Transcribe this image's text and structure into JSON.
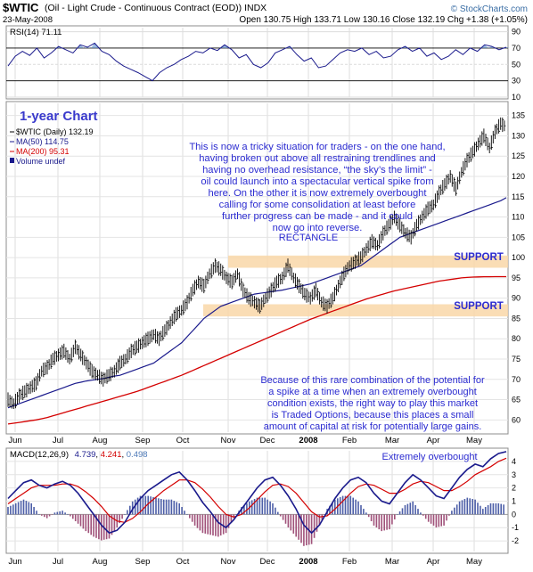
{
  "header": {
    "symbol": "$WTIC",
    "description": "(Oil - Light Crude - Continuous Contract (EOD)) INDX",
    "date": "23-May-2008",
    "quote": "Open 130.75  High 133.71  Low 130.16  Close 132.19  Chg +1.38 (+1.05%)",
    "watermark": "© StockCharts.com"
  },
  "rsi_panel": {
    "legend": "RSI(14) 71.11",
    "y_ticks": [
      "90",
      "70",
      "50",
      "30",
      "10"
    ],
    "levels": [
      30,
      70
    ]
  },
  "price_panel": {
    "chart_title": "1-year Chart",
    "legend": {
      "price": "$WTIC (Daily) 132.19",
      "ma50": "MA(50) 114.75",
      "ma200": "MA(200) 95.31",
      "volume": "Volume undef"
    },
    "y_ticks": [
      "135",
      "130",
      "125",
      "120",
      "115",
      "110",
      "105",
      "100",
      "95",
      "90",
      "85",
      "80",
      "75",
      "70",
      "65",
      "60"
    ],
    "annotations": {
      "top_text": [
        "This is now a tricky situation for traders - on the one hand,",
        "having broken out above all restraining trendlines and",
        "having no overhead resistance, “the sky’s the limit” -",
        "oil could launch into a spectacular vertical spike from",
        "here. On the other it is now extremely overbought",
        "calling for some consolidation at least before",
        "further progress can be made - and it could",
        "now go into reverse."
      ],
      "rectangle": "RECTANGLE",
      "support_upper": "SUPPORT",
      "support_lower": "SUPPORT",
      "bottom_text": [
        "Because of this rare combination of the potential for",
        "a spike at a time when an extremely overbought",
        "condition exists, the right way to play this market",
        "is Traded Options, because this places a small",
        "amount of capital at risk for potentially large gains."
      ]
    }
  },
  "macd_panel": {
    "legend_prefix": "MACD(12,26,9)",
    "macd": "4.739",
    "signal": "4.241",
    "histogram": "0.498",
    "note": "Extremely overbought",
    "y_ticks": [
      "4",
      "3",
      "2",
      "1",
      "0",
      "-1",
      "-2"
    ]
  },
  "x_axis_labels": [
    "Jun",
    "Jul",
    "Aug",
    "Sep",
    "Oct",
    "Nov",
    "Dec",
    "2008",
    "Feb",
    "Mar",
    "Apr",
    "May"
  ],
  "colors": {
    "price": "#000000",
    "ma50": "#1a1a8c",
    "ma200": "#d40000",
    "macd": "#1a1a8c",
    "signal": "#d40000",
    "histogram": "#5a5a9a",
    "annotation": "#2b2bd0",
    "support_band": "#f9d7a8",
    "title": "#3a3acc"
  },
  "chart_data": [
    {
      "type": "line",
      "title": "RSI(14)",
      "x_labels": [
        "Jun",
        "Jul",
        "Aug",
        "Sep",
        "Oct",
        "Nov",
        "Dec",
        "2008",
        "Feb",
        "Mar",
        "Apr",
        "May"
      ],
      "ylim": [
        10,
        95
      ],
      "guide_lines": [
        30,
        70
      ],
      "series": [
        {
          "name": "RSI(14)",
          "values": [
            48,
            60,
            66,
            61,
            70,
            58,
            64,
            72,
            68,
            64,
            74,
            71,
            76,
            66,
            62,
            54,
            48,
            44,
            40,
            35,
            30,
            40,
            46,
            50,
            56,
            60,
            66,
            64,
            70,
            67,
            74,
            68,
            58,
            62,
            50,
            46,
            52,
            64,
            68,
            72,
            62,
            54,
            58,
            46,
            48,
            56,
            64,
            68,
            66,
            70,
            62,
            66,
            58,
            60,
            68,
            72,
            66,
            70,
            60,
            64,
            56,
            60,
            68,
            62,
            70,
            66,
            74,
            72,
            68,
            71
          ]
        }
      ]
    },
    {
      "type": "line",
      "title": "$WTIC (Daily)",
      "x_labels": [
        "Jun",
        "Jul",
        "Aug",
        "Sep",
        "Oct",
        "Nov",
        "Dec",
        "2008",
        "Feb",
        "Mar",
        "Apr",
        "May"
      ],
      "ylim": [
        57,
        138
      ],
      "series": [
        {
          "name": "$WTIC (Daily)",
          "values": [
            65,
            64,
            66,
            67,
            68,
            69,
            72,
            73,
            75,
            76,
            77,
            75,
            78,
            76,
            74,
            72,
            71,
            70,
            71,
            72,
            74,
            75,
            77,
            78,
            79,
            80,
            81,
            80,
            82,
            84,
            86,
            87,
            89,
            92,
            94,
            93,
            96,
            98,
            97,
            95,
            94,
            96,
            92,
            90,
            89,
            88,
            90,
            92,
            94,
            95,
            98,
            95,
            93,
            91,
            90,
            92,
            89,
            88,
            90,
            93,
            96,
            98,
            99,
            100,
            102,
            104,
            103,
            106,
            108,
            110,
            108,
            106,
            105,
            108,
            110,
            112,
            113,
            116,
            118,
            120,
            117,
            121,
            124,
            126,
            128,
            130,
            127,
            131,
            133,
            132.19
          ]
        },
        {
          "name": "MA(50)",
          "values": [
            63,
            63.5,
            64,
            64.5,
            65,
            65.5,
            66,
            66.5,
            67,
            67.5,
            68,
            68.5,
            69,
            69.3,
            69.6,
            69.8,
            70,
            70.2,
            70.5,
            70.8,
            71,
            71.5,
            72,
            72.5,
            73,
            73.5,
            74,
            75,
            76,
            77,
            78,
            79,
            80.5,
            82,
            83.5,
            85,
            86,
            87,
            88,
            88.5,
            89,
            89.5,
            90,
            90.5,
            91,
            91.2,
            91.4,
            91.6,
            91.8,
            92,
            92.3,
            92.6,
            92.9,
            93.2,
            93.5,
            94,
            94.5,
            95,
            95.5,
            96,
            96.5,
            97,
            97.5,
            98,
            99,
            100,
            101,
            102,
            103,
            104,
            105,
            105.5,
            106,
            106.5,
            107,
            107.5,
            108,
            108.5,
            109,
            109.5,
            110,
            110.5,
            111,
            111.5,
            112,
            112.5,
            113,
            113.5,
            114,
            114.75
          ]
        },
        {
          "name": "MA(200)",
          "values": [
            59,
            59.2,
            59.4,
            59.6,
            59.8,
            60,
            60.3,
            60.6,
            61,
            61.4,
            61.8,
            62.2,
            62.6,
            63,
            63.4,
            63.8,
            64.2,
            64.6,
            65,
            65.4,
            65.8,
            66.2,
            66.6,
            67,
            67.5,
            68,
            68.5,
            69,
            69.5,
            70,
            70.5,
            71,
            71.6,
            72.2,
            72.8,
            73.4,
            74,
            74.6,
            75.2,
            75.8,
            76.4,
            77,
            77.6,
            78.2,
            78.8,
            79.4,
            80,
            80.6,
            81.2,
            81.8,
            82.4,
            83,
            83.6,
            84.2,
            84.8,
            85.3,
            85.8,
            86.3,
            86.8,
            87.3,
            87.8,
            88.3,
            88.8,
            89.3,
            89.8,
            90.2,
            90.6,
            91,
            91.4,
            91.8,
            92.1,
            92.4,
            92.7,
            93,
            93.3,
            93.6,
            93.9,
            94.2,
            94.4,
            94.6,
            94.8,
            95,
            95.1,
            95.2,
            95.25,
            95.28,
            95.29,
            95.3,
            95.31,
            95.31
          ]
        }
      ]
    },
    {
      "type": "line",
      "title": "MACD(12,26,9)",
      "x_labels": [
        "Jun",
        "Jul",
        "Aug",
        "Sep",
        "Oct",
        "Nov",
        "Dec",
        "2008",
        "Feb",
        "Mar",
        "Apr",
        "May"
      ],
      "ylim": [
        -2.8,
        4.8
      ],
      "series": [
        {
          "name": "MACD",
          "values": [
            1.2,
            1.8,
            2.4,
            2.6,
            2.2,
            2.0,
            2.3,
            2.5,
            2.2,
            1.6,
            0.8,
            0.0,
            -0.8,
            -1.4,
            -1.2,
            -0.6,
            0.4,
            1.2,
            1.8,
            2.2,
            2.6,
            3.0,
            3.2,
            2.6,
            1.8,
            0.9,
            0.2,
            -0.6,
            -1.0,
            -0.4,
            0.4,
            1.2,
            2.0,
            2.6,
            2.8,
            2.2,
            1.4,
            0.4,
            -0.8,
            -1.4,
            -0.8,
            0.2,
            1.2,
            2.0,
            2.6,
            2.8,
            2.4,
            1.6,
            1.0,
            0.8,
            1.6,
            2.4,
            3.0,
            2.6,
            2.0,
            1.4,
            1.2,
            2.0,
            2.8,
            3.4,
            3.8,
            3.6,
            4.2,
            4.6,
            4.739
          ]
        },
        {
          "name": "Signal",
          "values": [
            0.8,
            1.2,
            1.6,
            2.0,
            2.2,
            2.2,
            2.2,
            2.3,
            2.3,
            2.1,
            1.7,
            1.2,
            0.6,
            -0.1,
            -0.5,
            -0.6,
            -0.3,
            0.2,
            0.8,
            1.3,
            1.8,
            2.2,
            2.6,
            2.6,
            2.4,
            1.9,
            1.3,
            0.6,
            0.0,
            -0.2,
            0.0,
            0.5,
            1.1,
            1.7,
            2.2,
            2.3,
            2.1,
            1.6,
            0.9,
            0.2,
            -0.2,
            -0.1,
            0.4,
            1.0,
            1.6,
            2.1,
            2.3,
            2.2,
            1.9,
            1.6,
            1.6,
            1.9,
            2.3,
            2.5,
            2.4,
            2.1,
            1.8,
            1.8,
            2.1,
            2.5,
            3.0,
            3.3,
            3.6,
            4.0,
            4.241
          ]
        }
      ]
    }
  ]
}
